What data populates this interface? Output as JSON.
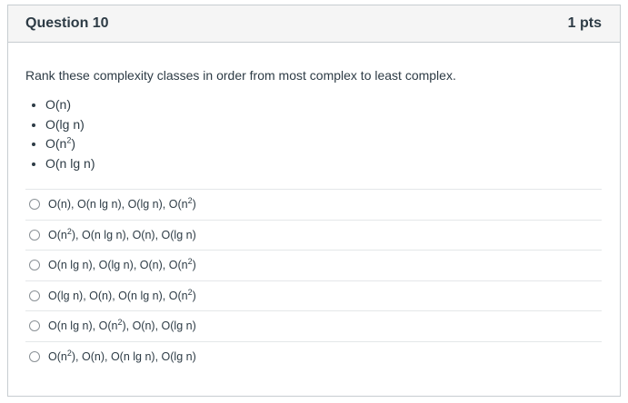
{
  "question": {
    "title": "Question 10",
    "points": "1 pts",
    "prompt": "Rank these complexity classes in order from most complex to least complex."
  },
  "classes": [
    {
      "pre": "O(n",
      "sup": "",
      "post": ")"
    },
    {
      "pre": "O(lg n",
      "sup": "",
      "post": ")"
    },
    {
      "pre": "O(n",
      "sup": "2",
      "post": ")"
    },
    {
      "pre": "O(n lg n",
      "sup": "",
      "post": ")"
    }
  ],
  "answers": [
    [
      {
        "pre": "O(n",
        "sup": "",
        "post": ")"
      },
      {
        "pre": "O(n lg n",
        "sup": "",
        "post": ")"
      },
      {
        "pre": "O(lg n",
        "sup": "",
        "post": ")"
      },
      {
        "pre": "O(n",
        "sup": "2",
        "post": ")"
      }
    ],
    [
      {
        "pre": "O(n",
        "sup": "2",
        "post": ")"
      },
      {
        "pre": "O(n lg n",
        "sup": "",
        "post": ")"
      },
      {
        "pre": "O(n",
        "sup": "",
        "post": ")"
      },
      {
        "pre": "O(lg n",
        "sup": "",
        "post": ")"
      }
    ],
    [
      {
        "pre": "O(n lg n",
        "sup": "",
        "post": ")"
      },
      {
        "pre": "O(lg n",
        "sup": "",
        "post": ")"
      },
      {
        "pre": "O(n",
        "sup": "",
        "post": ")"
      },
      {
        "pre": "O(n",
        "sup": "2",
        "post": ")"
      }
    ],
    [
      {
        "pre": "O(lg n",
        "sup": "",
        "post": ")"
      },
      {
        "pre": "O(n",
        "sup": "",
        "post": ")"
      },
      {
        "pre": "O(n lg n",
        "sup": "",
        "post": ")"
      },
      {
        "pre": "O(n",
        "sup": "2",
        "post": ")"
      }
    ],
    [
      {
        "pre": "O(n lg n",
        "sup": "",
        "post": ")"
      },
      {
        "pre": "O(n",
        "sup": "2",
        "post": ")"
      },
      {
        "pre": "O(n",
        "sup": "",
        "post": ")"
      },
      {
        "pre": "O(lg n",
        "sup": "",
        "post": ")"
      }
    ],
    [
      {
        "pre": "O(n",
        "sup": "2",
        "post": ")"
      },
      {
        "pre": "O(n",
        "sup": "",
        "post": ")"
      },
      {
        "pre": "O(n lg n",
        "sup": "",
        "post": ")"
      },
      {
        "pre": "O(lg n",
        "sup": "",
        "post": ")"
      }
    ]
  ],
  "separator": ", "
}
